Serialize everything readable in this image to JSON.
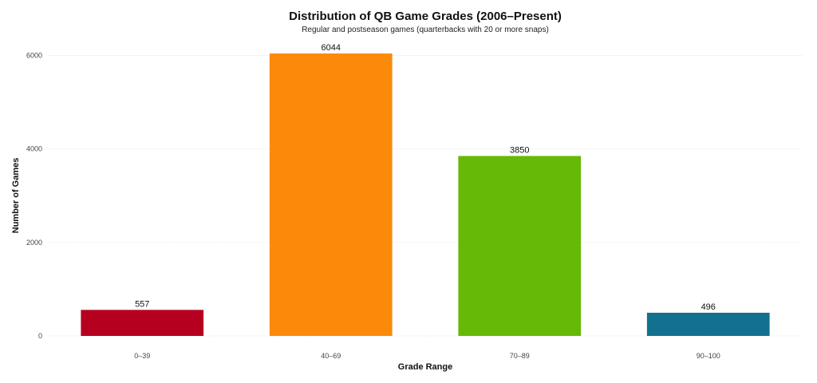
{
  "chart_data": {
    "type": "bar",
    "title": "Distribution of QB Game Grades (2006–Present)",
    "subtitle": "Regular and postseason games (quarterbacks with 20 or more snaps)",
    "xlabel": "Grade Range",
    "ylabel": "Number of Games",
    "categories": [
      "0–39",
      "40–69",
      "70–89",
      "90–100"
    ],
    "values": [
      557,
      6044,
      3850,
      496
    ],
    "data_labels": [
      "557",
      "6044",
      "3850",
      "496"
    ],
    "colors": [
      "#b5001f",
      "#fb8a0a",
      "#66b906",
      "#12718f"
    ],
    "ylim": [
      0,
      6044
    ],
    "yticks": [
      0,
      2000,
      4000,
      6000
    ],
    "ytick_labels": [
      "0",
      "2000",
      "4000",
      "6000"
    ],
    "grid": true,
    "legend": "none"
  }
}
